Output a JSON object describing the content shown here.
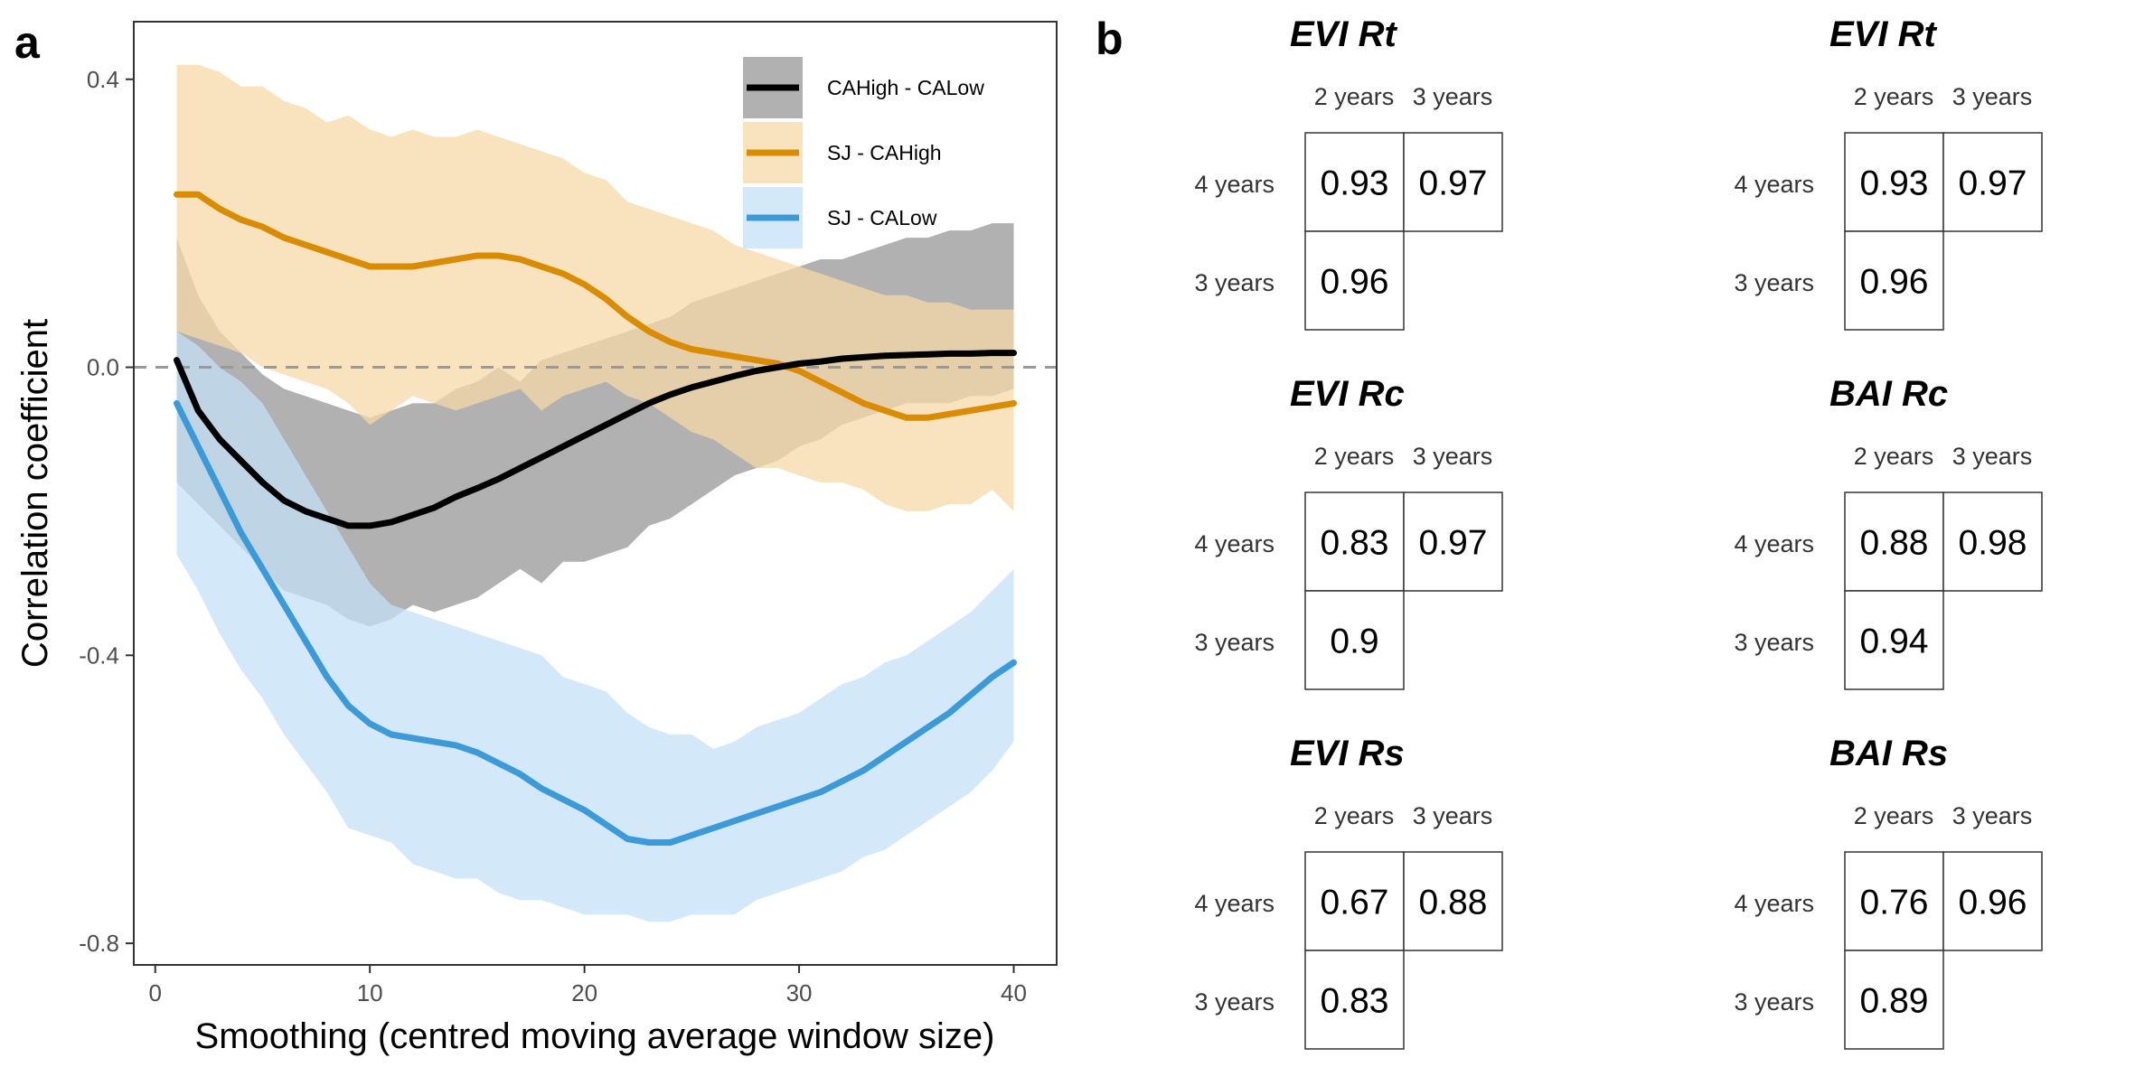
{
  "panel_a_letter": "a",
  "panel_b_letter": "b",
  "chart_data": {
    "type": "line",
    "xlabel": "Smoothing (centred moving average window size)",
    "ylabel": "Correlation coefficient",
    "xlim": [
      -1,
      42
    ],
    "ylim": [
      -0.83,
      0.48
    ],
    "xticks": [
      0,
      10,
      20,
      30,
      40
    ],
    "xtick_labels": [
      "0",
      "10",
      "20",
      "30",
      "40"
    ],
    "yticks": [
      0.4,
      0.0,
      -0.4,
      -0.8
    ],
    "ytick_labels": [
      "0.4",
      "0.0",
      "-0.4",
      "-0.8"
    ],
    "reference_line": 0.0,
    "grid": false,
    "legend_position": "top-right",
    "x": [
      1,
      2,
      3,
      4,
      5,
      6,
      7,
      8,
      9,
      10,
      11,
      12,
      13,
      14,
      15,
      16,
      17,
      18,
      19,
      20,
      21,
      22,
      23,
      24,
      25,
      26,
      27,
      28,
      29,
      30,
      31,
      32,
      33,
      34,
      35,
      36,
      37,
      38,
      39,
      40
    ],
    "series": [
      {
        "name": "CAHigh - CALow",
        "color": "#000000",
        "band_color": "#8c8c8c",
        "values": [
          0.01,
          -0.06,
          -0.1,
          -0.13,
          -0.16,
          -0.185,
          -0.2,
          -0.21,
          -0.22,
          -0.22,
          -0.215,
          -0.205,
          -0.195,
          -0.18,
          -0.168,
          -0.155,
          -0.14,
          -0.125,
          -0.11,
          -0.095,
          -0.08,
          -0.065,
          -0.05,
          -0.038,
          -0.028,
          -0.02,
          -0.012,
          -0.005,
          0.0,
          0.005,
          0.008,
          0.012,
          0.014,
          0.016,
          0.017,
          0.018,
          0.019,
          0.019,
          0.02,
          0.02
        ],
        "lower": [
          -0.16,
          -0.19,
          -0.22,
          -0.25,
          -0.28,
          -0.31,
          -0.32,
          -0.33,
          -0.35,
          -0.36,
          -0.35,
          -0.33,
          -0.34,
          -0.33,
          -0.32,
          -0.3,
          -0.28,
          -0.3,
          -0.27,
          -0.27,
          -0.26,
          -0.25,
          -0.22,
          -0.21,
          -0.19,
          -0.17,
          -0.15,
          -0.14,
          -0.13,
          -0.11,
          -0.1,
          -0.08,
          -0.07,
          -0.06,
          -0.05,
          -0.05,
          -0.05,
          -0.04,
          -0.04,
          -0.03
        ],
        "upper": [
          0.18,
          0.1,
          0.05,
          0.02,
          -0.01,
          -0.03,
          -0.04,
          -0.05,
          -0.06,
          -0.07,
          -0.06,
          -0.05,
          -0.05,
          -0.03,
          -0.02,
          0.0,
          -0.02,
          0.01,
          0.02,
          0.03,
          0.04,
          0.05,
          0.06,
          0.07,
          0.09,
          0.1,
          0.11,
          0.12,
          0.13,
          0.14,
          0.15,
          0.15,
          0.16,
          0.17,
          0.18,
          0.18,
          0.19,
          0.19,
          0.2,
          0.2
        ]
      },
      {
        "name": "SJ - CAHigh",
        "color": "#d98c00",
        "band_color": "#f5d9a8",
        "values": [
          0.24,
          0.24,
          0.22,
          0.205,
          0.195,
          0.18,
          0.17,
          0.16,
          0.15,
          0.14,
          0.14,
          0.14,
          0.145,
          0.15,
          0.155,
          0.155,
          0.15,
          0.14,
          0.13,
          0.115,
          0.095,
          0.07,
          0.05,
          0.035,
          0.025,
          0.02,
          0.015,
          0.01,
          0.005,
          -0.005,
          -0.02,
          -0.035,
          -0.05,
          -0.06,
          -0.07,
          -0.07,
          -0.065,
          -0.06,
          -0.055,
          -0.05
        ],
        "lower": [
          0.05,
          0.04,
          0.03,
          0.02,
          0.0,
          -0.01,
          -0.02,
          -0.03,
          -0.05,
          -0.08,
          -0.06,
          -0.04,
          -0.05,
          -0.06,
          -0.05,
          -0.04,
          -0.03,
          -0.06,
          -0.04,
          -0.03,
          -0.02,
          -0.04,
          -0.05,
          -0.07,
          -0.09,
          -0.1,
          -0.12,
          -0.14,
          -0.14,
          -0.15,
          -0.16,
          -0.16,
          -0.17,
          -0.19,
          -0.2,
          -0.2,
          -0.19,
          -0.19,
          -0.17,
          -0.2
        ],
        "upper": [
          0.42,
          0.42,
          0.41,
          0.39,
          0.39,
          0.37,
          0.36,
          0.34,
          0.35,
          0.33,
          0.32,
          0.33,
          0.32,
          0.32,
          0.33,
          0.32,
          0.31,
          0.3,
          0.29,
          0.27,
          0.26,
          0.23,
          0.22,
          0.21,
          0.2,
          0.19,
          0.17,
          0.16,
          0.15,
          0.14,
          0.13,
          0.12,
          0.11,
          0.1,
          0.1,
          0.09,
          0.09,
          0.08,
          0.08,
          0.08
        ]
      },
      {
        "name": "SJ - CALow",
        "color": "#3c9ad9",
        "band_color": "#c4e0f7",
        "values": [
          -0.05,
          -0.11,
          -0.17,
          -0.23,
          -0.28,
          -0.33,
          -0.38,
          -0.43,
          -0.47,
          -0.495,
          -0.51,
          -0.515,
          -0.52,
          -0.525,
          -0.535,
          -0.55,
          -0.565,
          -0.585,
          -0.6,
          -0.615,
          -0.635,
          -0.655,
          -0.66,
          -0.66,
          -0.65,
          -0.64,
          -0.63,
          -0.62,
          -0.61,
          -0.6,
          -0.59,
          -0.575,
          -0.56,
          -0.54,
          -0.52,
          -0.5,
          -0.48,
          -0.455,
          -0.43,
          -0.41
        ],
        "lower": [
          -0.26,
          -0.31,
          -0.37,
          -0.42,
          -0.46,
          -0.51,
          -0.55,
          -0.59,
          -0.64,
          -0.65,
          -0.66,
          -0.69,
          -0.7,
          -0.71,
          -0.71,
          -0.73,
          -0.74,
          -0.74,
          -0.75,
          -0.76,
          -0.76,
          -0.76,
          -0.77,
          -0.77,
          -0.76,
          -0.76,
          -0.76,
          -0.74,
          -0.73,
          -0.72,
          -0.71,
          -0.7,
          -0.68,
          -0.67,
          -0.65,
          -0.63,
          -0.61,
          -0.59,
          -0.56,
          -0.52
        ],
        "upper": [
          0.05,
          0.03,
          0.0,
          -0.02,
          -0.05,
          -0.1,
          -0.15,
          -0.2,
          -0.25,
          -0.3,
          -0.33,
          -0.34,
          -0.35,
          -0.36,
          -0.37,
          -0.38,
          -0.39,
          -0.4,
          -0.43,
          -0.44,
          -0.45,
          -0.48,
          -0.5,
          -0.51,
          -0.51,
          -0.53,
          -0.52,
          -0.5,
          -0.49,
          -0.48,
          -0.46,
          -0.44,
          -0.43,
          -0.41,
          -0.4,
          -0.38,
          -0.36,
          -0.34,
          -0.31,
          -0.28
        ]
      }
    ]
  },
  "matrices": [
    {
      "title": "EVI Rt",
      "col_labels": [
        "2 years",
        "3 years"
      ],
      "row_labels": [
        "4 years",
        "3 years"
      ],
      "values": [
        "0.93",
        "0.97",
        "0.96"
      ]
    },
    {
      "title": "EVI Rt",
      "col_labels": [
        "2 years",
        "3 years"
      ],
      "row_labels": [
        "4 years",
        "3 years"
      ],
      "values": [
        "0.93",
        "0.97",
        "0.96"
      ]
    },
    {
      "title": "EVI Rc",
      "col_labels": [
        "2 years",
        "3 years"
      ],
      "row_labels": [
        "4 years",
        "3 years"
      ],
      "values": [
        "0.83",
        "0.97",
        "0.9"
      ]
    },
    {
      "title": "BAI Rc",
      "col_labels": [
        "2 years",
        "3 years"
      ],
      "row_labels": [
        "4 years",
        "3 years"
      ],
      "values": [
        "0.88",
        "0.98",
        "0.94"
      ]
    },
    {
      "title": "EVI Rs",
      "col_labels": [
        "2 years",
        "3 years"
      ],
      "row_labels": [
        "4 years",
        "3 years"
      ],
      "values": [
        "0.67",
        "0.88",
        "0.83"
      ]
    },
    {
      "title": "BAI Rs",
      "col_labels": [
        "2 years",
        "3 years"
      ],
      "row_labels": [
        "4 years",
        "3 years"
      ],
      "values": [
        "0.76",
        "0.96",
        "0.89"
      ]
    }
  ]
}
